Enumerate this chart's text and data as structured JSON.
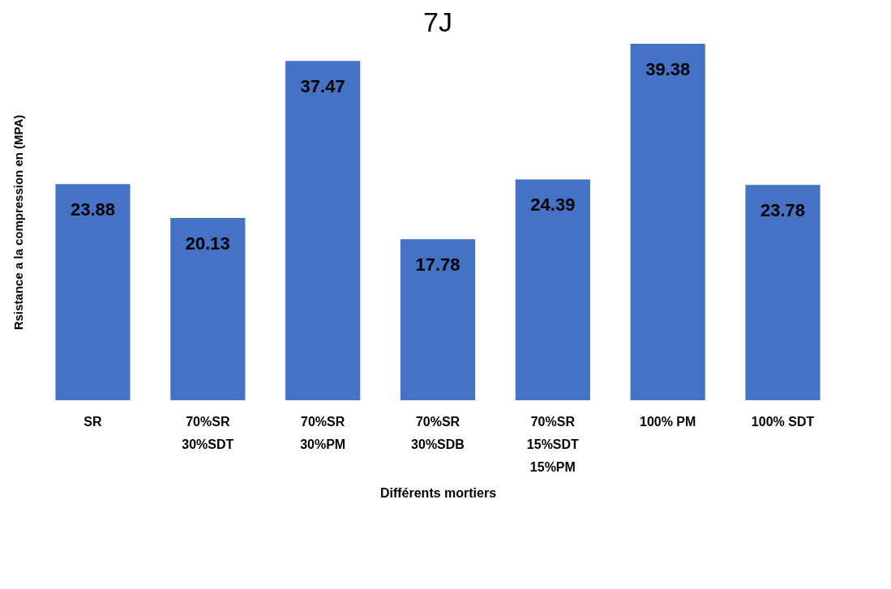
{
  "chart_data": {
    "type": "bar",
    "title": "7J",
    "xlabel": "Différents mortiers",
    "ylabel": "Rsistance a la  compression en  (MPA)",
    "categories": [
      "SR",
      "70%SR\n30%SDT",
      "70%SR\n30%PM",
      "70%SR\n30%SDB",
      "70%SR\n15%SDT\n15%PM",
      "100% PM",
      "100% SDT"
    ],
    "values": [
      23.88,
      20.13,
      37.47,
      17.78,
      24.39,
      39.38,
      23.78
    ],
    "color": "#4472c4",
    "data_labels": true,
    "grid": false
  }
}
